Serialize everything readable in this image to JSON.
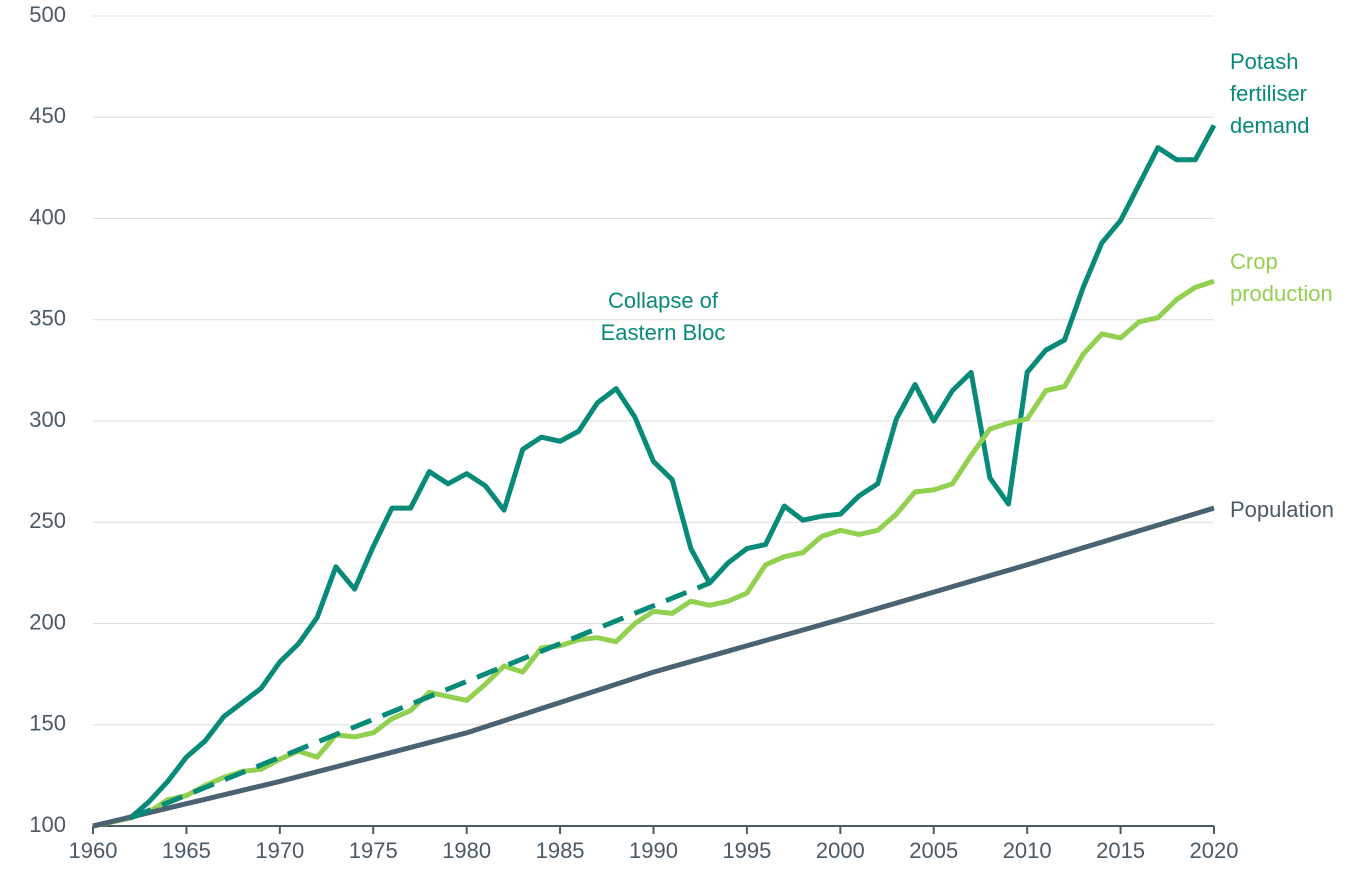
{
  "chart_data": {
    "type": "line",
    "x": [
      1960,
      1961,
      1962,
      1963,
      1964,
      1965,
      1966,
      1967,
      1968,
      1969,
      1970,
      1971,
      1972,
      1973,
      1974,
      1975,
      1976,
      1977,
      1978,
      1979,
      1980,
      1981,
      1982,
      1983,
      1984,
      1985,
      1986,
      1987,
      1988,
      1989,
      1990,
      1991,
      1992,
      1993,
      1994,
      1995,
      1996,
      1997,
      1998,
      1999,
      2000,
      2001,
      2002,
      2003,
      2004,
      2005,
      2006,
      2007,
      2008,
      2009,
      2010,
      2011,
      2012,
      2013,
      2014,
      2015,
      2016,
      2017,
      2018,
      2019,
      2020
    ],
    "series": [
      {
        "name": "Potash fertiliser demand",
        "color": "#078a78",
        "values": [
          100,
          102,
          104,
          112,
          122,
          134,
          142,
          154,
          161,
          168,
          181,
          190,
          203,
          228,
          217,
          238,
          257,
          257,
          275,
          269,
          274,
          268,
          256,
          286,
          292,
          290,
          295,
          309,
          316,
          302,
          280,
          271,
          237,
          220,
          230,
          237,
          239,
          258,
          251,
          253,
          254,
          263,
          269,
          301,
          318,
          300,
          315,
          324,
          272,
          259,
          324,
          335,
          340,
          366,
          388,
          399,
          417,
          435,
          429,
          429,
          446
        ]
      },
      {
        "name": "Crop production",
        "color": "#92d050",
        "values": [
          100,
          102,
          104,
          107,
          113,
          115,
          120,
          124,
          127,
          128,
          133,
          137,
          134,
          145,
          144,
          146,
          153,
          157,
          166,
          164,
          162,
          170,
          179,
          176,
          188,
          189,
          192,
          193,
          191,
          200,
          206,
          205,
          211,
          209,
          211,
          215,
          229,
          233,
          235,
          243,
          246,
          244,
          246,
          254,
          265,
          266,
          269,
          283,
          296,
          299,
          301,
          315,
          317,
          333,
          343,
          341,
          349,
          351,
          360,
          366,
          369
        ]
      },
      {
        "name": "Population",
        "color": "#4a6272",
        "values": [
          100,
          102.2,
          104.4,
          106.6,
          108.8,
          111,
          113.2,
          115.4,
          117.6,
          119.8,
          122,
          124.4,
          126.8,
          129.2,
          131.6,
          134,
          136.4,
          138.8,
          141.2,
          143.6,
          146,
          149,
          152,
          155,
          158,
          161,
          164,
          167,
          170,
          173,
          176,
          178.6,
          181.2,
          183.8,
          186.4,
          189,
          191.6,
          194.2,
          196.8,
          199.4,
          202,
          204.7,
          207.4,
          210.1,
          212.8,
          215.5,
          218.2,
          220.9,
          223.6,
          226.3,
          229,
          231.8,
          234.6,
          237.4,
          240.2,
          243,
          245.8,
          248.6,
          251.4,
          254.2,
          257
        ]
      },
      {
        "color": "#078a78",
        "dash": true,
        "x": [
          1962,
          1993
        ],
        "values": [
          104,
          220
        ]
      }
    ],
    "annotation": "Collapse of Eastern Bloc",
    "xlim": [
      1960,
      2020
    ],
    "xticks": [
      1960,
      1965,
      1970,
      1975,
      1980,
      1985,
      1990,
      1995,
      2000,
      2005,
      2010,
      2015,
      2020
    ],
    "ylim": [
      100,
      500
    ],
    "yticks": [
      100,
      150,
      200,
      250,
      300,
      350,
      400,
      450,
      500
    ],
    "grid": true
  }
}
